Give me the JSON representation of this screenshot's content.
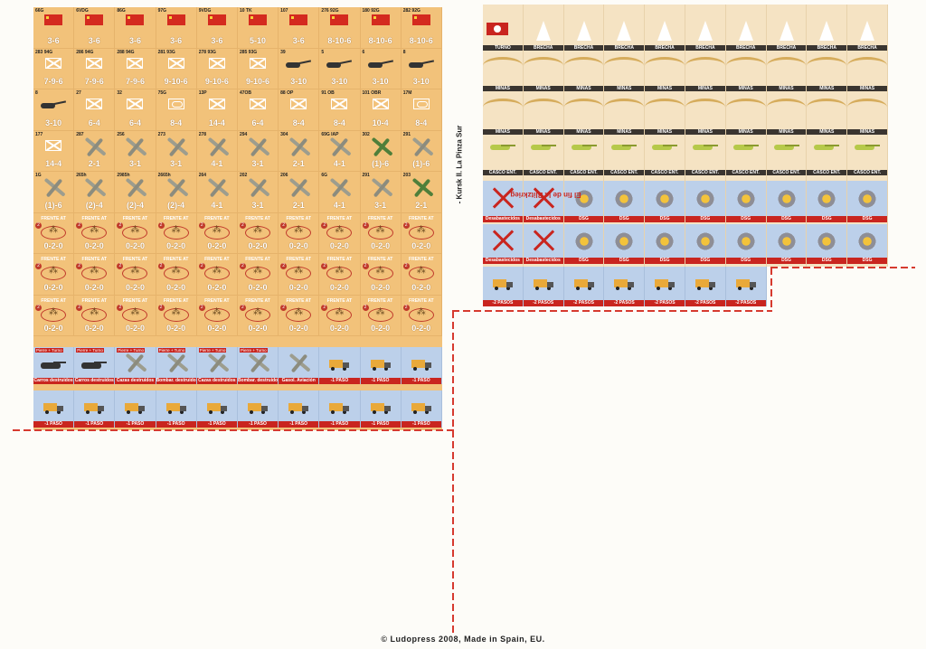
{
  "sheet_left": {
    "rows": [
      {
        "kind": "flag",
        "items": [
          {
            "top": "66G",
            "val": "3-6"
          },
          {
            "top": "6VDG",
            "val": "3-6"
          },
          {
            "top": "86G",
            "val": "3-6"
          },
          {
            "top": "97G",
            "val": "3-6"
          },
          {
            "top": "9VDG",
            "val": "3-6"
          },
          {
            "top": "10 TK",
            "val": "5-10"
          },
          {
            "top": "107",
            "val": "3-6"
          },
          {
            "top": "276 92G",
            "val": "8-10-6"
          },
          {
            "top": "180 92G",
            "val": "8-10-6"
          },
          {
            "top": "282 92G",
            "val": "8-10-6"
          }
        ]
      },
      {
        "kind": "mixed",
        "items": [
          {
            "top": "283 94G",
            "val": "7-9-6",
            "icon": "inf"
          },
          {
            "top": "286 94G",
            "val": "7-9-6",
            "icon": "inf"
          },
          {
            "top": "288 94G",
            "val": "7-9-6",
            "icon": "inf"
          },
          {
            "top": "281 93G",
            "val": "9-10-6",
            "icon": "inf"
          },
          {
            "top": "278 93G",
            "val": "9-10-6",
            "icon": "inf"
          },
          {
            "top": "285 93G",
            "val": "9-10-6",
            "icon": "inf"
          },
          {
            "top": "39",
            "val": "3-10",
            "icon": "gun"
          },
          {
            "top": "5",
            "val": "3-10",
            "icon": "gun"
          },
          {
            "top": "6",
            "val": "3-10",
            "icon": "gun"
          },
          {
            "top": "8",
            "val": "3-10",
            "icon": "gun"
          }
        ]
      },
      {
        "kind": "mixed",
        "items": [
          {
            "top": "8",
            "val": "3-10",
            "icon": "gun"
          },
          {
            "top": "27",
            "val": "6-4",
            "icon": "inf"
          },
          {
            "top": "32",
            "val": "6-4",
            "icon": "inf"
          },
          {
            "top": "75G",
            "val": "8-4",
            "icon": "arm"
          },
          {
            "top": "13P",
            "val": "14-4",
            "icon": "inf"
          },
          {
            "top": "47OB",
            "val": "6-4",
            "icon": "inf"
          },
          {
            "top": "88 OP",
            "val": "8-4",
            "icon": "inf"
          },
          {
            "top": "91 OB",
            "val": "8-4",
            "icon": "inf"
          },
          {
            "top": "101 OBR",
            "val": "10-4",
            "icon": "inf"
          },
          {
            "top": "17M",
            "val": "8-4",
            "icon": "arm"
          }
        ]
      },
      {
        "kind": "plane",
        "items": [
          {
            "top": "177",
            "val": "14-4",
            "icon": "inf"
          },
          {
            "top": "287",
            "val": "2-1",
            "icon": "plane"
          },
          {
            "top": "256",
            "val": "3-1",
            "icon": "plane"
          },
          {
            "top": "273",
            "val": "3-1",
            "icon": "plane"
          },
          {
            "top": "278",
            "val": "4-1",
            "icon": "plane"
          },
          {
            "top": "294",
            "val": "3-1",
            "icon": "plane"
          },
          {
            "top": "304",
            "val": "2-1",
            "icon": "plane"
          },
          {
            "top": "69G IAP",
            "val": "4-1",
            "icon": "plane"
          },
          {
            "top": "302",
            "val": "(1)-6",
            "icon": "plane-green"
          },
          {
            "top": "291",
            "val": "(1)-6",
            "icon": "plane"
          }
        ]
      },
      {
        "kind": "plane",
        "items": [
          {
            "top": "1G",
            "val": "(1)-6",
            "icon": "plane"
          },
          {
            "top": "265h",
            "val": "(2)-4",
            "icon": "plane"
          },
          {
            "top": "2985h",
            "val": "(2)-4",
            "icon": "plane"
          },
          {
            "top": "2665h",
            "val": "(2)-4",
            "icon": "plane"
          },
          {
            "top": "264",
            "val": "4-1",
            "icon": "plane"
          },
          {
            "top": "202",
            "val": "3-1",
            "icon": "plane"
          },
          {
            "top": "206",
            "val": "2-1",
            "icon": "plane"
          },
          {
            "top": "6G",
            "val": "4-1",
            "icon": "plane"
          },
          {
            "top": "291",
            "val": "3-1",
            "icon": "plane"
          },
          {
            "top": "203",
            "val": "2-1",
            "icon": "plane-green"
          }
        ]
      },
      {
        "kind": "frente",
        "title": "FRENTE AT",
        "val": "0-2-0",
        "count": 10
      },
      {
        "kind": "frente",
        "title": "FRENTE AT",
        "val": "0-2-0",
        "count": 10
      },
      {
        "kind": "frente",
        "title": "FRENTE AT",
        "val": "0-2-0",
        "count": 10
      }
    ],
    "blue_row_1": [
      {
        "tag": "Pierre + Turno",
        "label": "Carros destruidos",
        "icon": "tank"
      },
      {
        "tag": "Pierre + Turno",
        "label": "Carros destruidos",
        "icon": "tank"
      },
      {
        "tag": "Pierre + Turno",
        "label": "Cazas destruidos",
        "icon": "plane"
      },
      {
        "tag": "Pierre + Turno",
        "label": "Bombar. destruidos",
        "icon": "plane"
      },
      {
        "tag": "Pierre + Turno",
        "label": "Cazas destruidos",
        "icon": "plane"
      },
      {
        "tag": "Pierre + Turno",
        "label": "Bombar. destruidos",
        "icon": "plane"
      },
      {
        "tag": "",
        "label": "Gasol. Aviación",
        "icon": "plane"
      },
      {
        "tag": "",
        "label": "-1 PASO",
        "icon": "truck"
      },
      {
        "tag": "",
        "label": "-1 PASO",
        "icon": "truck"
      },
      {
        "tag": "",
        "label": "-1 PASO",
        "icon": "truck"
      }
    ],
    "blue_row_2": [
      "-1 PASO",
      "-1 PASO",
      "-1 PASO",
      "-1 PASO",
      "-1 PASO",
      "-1 PASO",
      "-1 PASO",
      "-1 PASO",
      "-1 PASO",
      "-1 PASO"
    ]
  },
  "sheet_right": {
    "turno_label": "TURNO",
    "brecha_label": "BRECHA",
    "minas_label": "MINAS",
    "casco_label": "CASCO ENT.",
    "desabast_label": "Desabastecidos",
    "dsg_label": "DSG",
    "pasos_label": "-2 PASOS"
  },
  "side_title": {
    "red": "El fin de la Blitzkrieg",
    "dark": " - Kursk II. La Pinza Sur"
  },
  "footer": "© Ludopress 2008, Made in Spain, EU.",
  "colors": {
    "counter_tan": "#f2c27a",
    "blue": "#bcd0ea",
    "red": "#c9251f",
    "dash": "#d63a2f"
  }
}
